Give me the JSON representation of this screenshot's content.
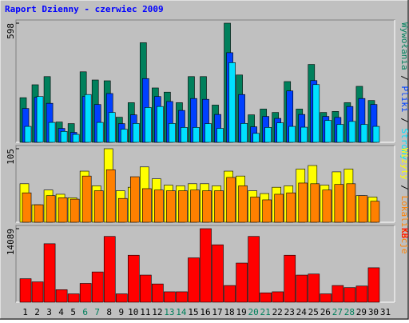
{
  "chart_data": {
    "type": "bar",
    "title": "Raport Dzienny -  czerwiec 2009",
    "title_color": "#0000ff",
    "categories": [
      "1",
      "2",
      "3",
      "4",
      "5",
      "6",
      "7",
      "8",
      "9",
      "10",
      "11",
      "12",
      "13",
      "14",
      "15",
      "16",
      "17",
      "18",
      "19",
      "20",
      "21",
      "22",
      "23",
      "24",
      "25",
      "26",
      "27",
      "28",
      "29",
      "30",
      "31"
    ],
    "category_colors": [
      "#000000",
      "#000000",
      "#000000",
      "#000000",
      "#000000",
      "#00805c",
      "#00805c",
      "#000000",
      "#000000",
      "#000000",
      "#000000",
      "#000000",
      "#00805c",
      "#00805c",
      "#000000",
      "#000000",
      "#000000",
      "#000000",
      "#000000",
      "#00805c",
      "#00805c",
      "#000000",
      "#000000",
      "#000000",
      "#000000",
      "#000000",
      "#00805c",
      "#00805c",
      "#000000",
      "#000000",
      "#000000"
    ],
    "legend_separator": " / ",
    "panels": [
      {
        "ylim": [
          0,
          598
        ],
        "yticks": [
          598
        ],
        "series": [
          {
            "name": "Wywołania",
            "color": "#00805c",
            "values": [
              224,
              289,
              330,
              102,
              94,
              354,
              313,
              309,
              126,
              199,
              500,
              273,
              252,
              199,
              330,
              330,
              187,
              598,
              338,
              138,
              167,
              150,
              305,
              167,
              391,
              150,
              155,
              199,
              281,
              210,
              null
            ]
          },
          {
            "name": "Pliki",
            "color": "#0040ff",
            "values": [
              170,
              226,
              196,
              70,
              50,
              230,
              190,
              245,
              94,
              138,
              320,
              230,
              205,
              160,
              220,
              216,
              140,
              450,
              240,
              78,
              130,
              120,
              258,
              140,
              310,
              130,
              125,
              180,
              220,
              190,
              null
            ]
          },
          {
            "name": "Strony",
            "color": "#00e0ff",
            "values": [
              80,
              230,
              100,
              55,
              40,
              240,
              100,
              150,
              66,
              95,
              175,
              180,
              95,
              75,
              75,
              94,
              70,
              400,
              95,
              45,
              75,
              98,
              80,
              76,
              290,
              110,
              90,
              105,
              90,
              80,
              null
            ]
          }
        ]
      },
      {
        "ylim": [
          0,
          105
        ],
        "yticks": [
          105
        ],
        "series": [
          {
            "name": "Wizyty",
            "color": "#ffff00",
            "values": [
              55,
              25,
              46,
              40,
              35,
              73,
              52,
              105,
              45,
              50,
              79,
              62,
              53,
              52,
              55,
              55,
              52,
              73,
              66,
              45,
              41,
              50,
              52,
              76,
              81,
              53,
              72,
              76,
              38,
              36,
              null
            ]
          },
          {
            "name": "Lokalizacje",
            "color": "#ff8000",
            "values": [
              42,
              25,
              38,
              35,
              33,
              66,
              45,
              75,
              34,
              65,
              48,
              46,
              45,
              45,
              46,
              45,
              45,
              64,
              52,
              36,
              32,
              40,
              42,
              56,
              55,
              46,
              54,
              55,
              38,
              30,
              null
            ]
          }
        ]
      },
      {
        "ylim": [
          0,
          14089
        ],
        "yticks": [
          14089
        ],
        "series": [
          {
            "name": "KB",
            "color": "#ff0000",
            "values": [
              4500,
              3900,
              11200,
              2400,
              1600,
              3600,
              5800,
              12600,
              1600,
              9000,
              5200,
              3500,
              2000,
              2000,
              8500,
              14089,
              11000,
              3200,
              7500,
              12600,
              1800,
              2000,
              9000,
              5200,
              5400,
              1600,
              3200,
              2800,
              3100,
              6600,
              null
            ]
          }
        ]
      }
    ]
  }
}
